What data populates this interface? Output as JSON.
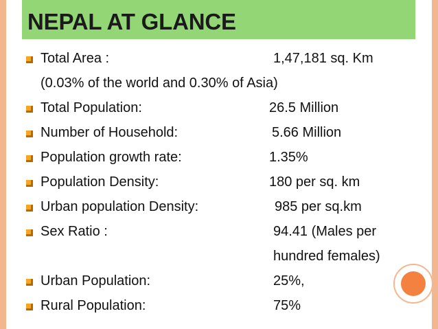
{
  "title": "NEPAL AT GLANCE",
  "colors": {
    "title_bar": "#93d675",
    "side_border": "#f3b78f",
    "circle": "#f4813f",
    "bullet": "#f5a623"
  },
  "items": [
    {
      "label": "Total Area :",
      "value": "1,47,181 sq. Km",
      "note": "(0.03%  of the world and 0.30%  of Asia)"
    },
    {
      "label": "Total Population:",
      "value": "26.5 Million"
    },
    {
      "label": "Number of Household:",
      "value": "5.66 Million"
    },
    {
      "label": "Population growth rate:",
      "value": "1.35%"
    },
    {
      "label": "Population Density:",
      "value": "180 per sq. km"
    },
    {
      "label": "Urban population Density:",
      "value": "985 per sq.km"
    },
    {
      "label": "Sex Ratio :",
      "value": "94.41 (Males per",
      "value_line2": "hundred females)"
    },
    {
      "label": "Urban Population:",
      "value": "25%,"
    },
    {
      "label": "Rural Population:",
      "value": "75%"
    }
  ]
}
